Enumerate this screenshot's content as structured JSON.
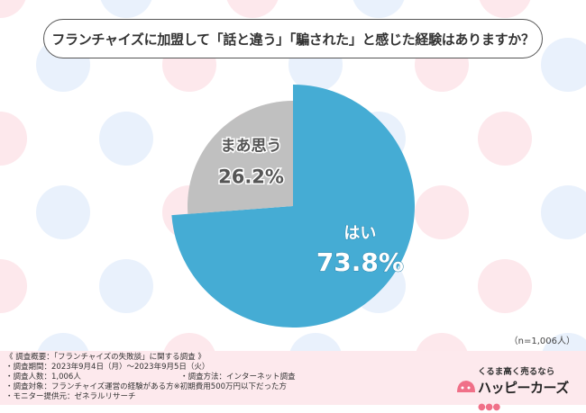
{
  "title": "フランチャイズに加盟して「話と違う」「騙された」と感じた経験はありますか？",
  "sample_note": "（n=1,006人）",
  "colors": {
    "yes": "#45acd4",
    "somewhat": "#c0c0c0",
    "footer_bg": "#fde9ed",
    "dot_pink": "#fde8ec",
    "dot_blue": "#e9f1fc"
  },
  "chart_data": {
    "type": "pie",
    "start": "12 o'clock",
    "direction": "clockwise",
    "slices": [
      {
        "label": "はい",
        "value": 73.8,
        "value_label": "73.8%",
        "color": "#45acd4"
      },
      {
        "label": "まあ思う",
        "value": 26.2,
        "value_label": "26.2%",
        "color": "#c0c0c0"
      }
    ]
  },
  "footer": {
    "overview": "《 調査概要：「フランチャイズの失敗談」に関する調査 》",
    "period": "・調査期間：2023年9月4日（月）～2023年9月5日（火）",
    "count": "・調査人数：1,006人",
    "method": "・調査方法：インターネット調査",
    "target": "・調査対象：フランチャイズ運営の経験がある方※初期費用500万円以下だった方",
    "provider": "・モニター提供元：ゼネラルリサーチ"
  },
  "logo": {
    "tagline": "くるま高く売るなら",
    "name": "ハッピーカーズ"
  }
}
